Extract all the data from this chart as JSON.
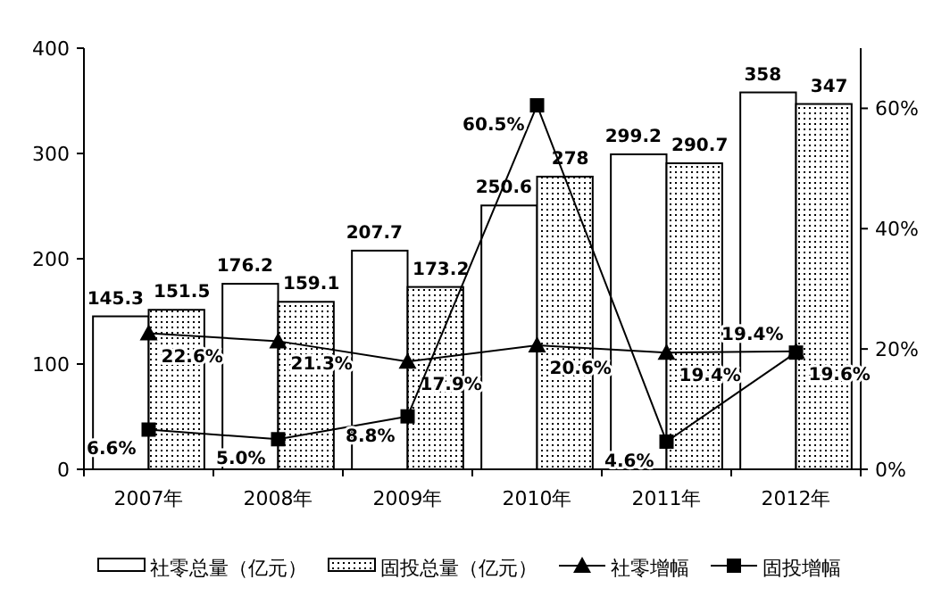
{
  "chart_data": {
    "type": "bar",
    "categories": [
      "2007年",
      "2008年",
      "2009年",
      "2010年",
      "2011年",
      "2012年"
    ],
    "series": [
      {
        "name": "社零总量（亿元）",
        "color": "#ffffff",
        "values": [
          145.3,
          176.2,
          207.7,
          250.6,
          299.2,
          358
        ]
      },
      {
        "name": "固投总量（亿元）",
        "color": "#000000",
        "values": [
          151.5,
          159.1,
          173.2,
          278,
          290.7,
          347
        ]
      },
      {
        "name": "社零增幅",
        "type": "line",
        "axis": "y2",
        "color": "#000000",
        "marker": "triangle",
        "values": [
          22.6,
          21.3,
          17.9,
          20.6,
          19.4,
          19.6
        ],
        "value_labels": [
          "22.6%",
          "21.3%",
          "17.9%",
          "20.6%",
          "19.4%",
          "19.6%"
        ]
      },
      {
        "name": "固投增幅",
        "type": "line",
        "axis": "y2",
        "color": "#000000",
        "marker": "square",
        "values": [
          6.6,
          5.0,
          8.8,
          60.5,
          4.6,
          19.4
        ],
        "value_labels": [
          "6.6%",
          "5.0%",
          "8.8%",
          "60.5%",
          "4.6%",
          "19.4%"
        ]
      }
    ],
    "ylim": [
      0,
      400
    ],
    "yticks": [
      0,
      100,
      200,
      300,
      400
    ],
    "y2lim": [
      0,
      70
    ],
    "y2ticks": [
      {
        "value": 0,
        "label": "0%"
      },
      {
        "value": 20,
        "label": "20%"
      },
      {
        "value": 40,
        "label": "40%"
      },
      {
        "value": 60,
        "label": "60%"
      }
    ],
    "data_labels": true,
    "grid": false,
    "legend": "bottom"
  }
}
